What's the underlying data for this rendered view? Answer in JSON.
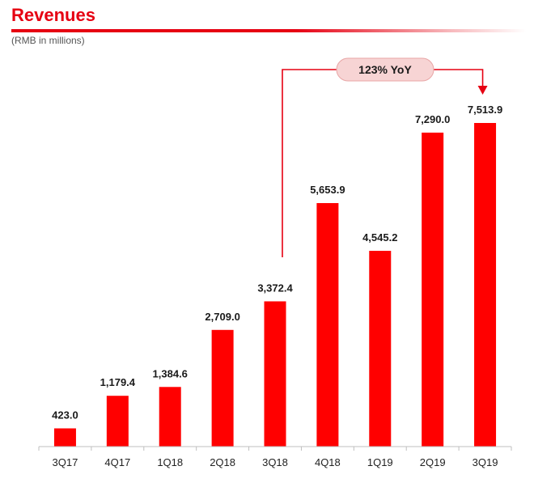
{
  "header": {
    "title": "Revenues",
    "subtitle": "(RMB in millions)"
  },
  "colors": {
    "accent": "#e60012",
    "bar": "#ff0000",
    "callout_fill": "#f7d4d4"
  },
  "callout": {
    "text": "123% YoY",
    "from_category": "3Q18",
    "to_category": "3Q19"
  },
  "chart_data": {
    "type": "bar",
    "title": "Revenues",
    "subtitle": "(RMB in millions)",
    "categories": [
      "3Q17",
      "4Q17",
      "1Q18",
      "2Q18",
      "3Q18",
      "4Q18",
      "1Q19",
      "2Q19",
      "3Q19"
    ],
    "values": [
      423.0,
      1179.4,
      1384.6,
      2709.0,
      3372.4,
      5653.9,
      4545.2,
      7290.0,
      7513.9
    ],
    "value_labels": [
      "423.0",
      "1,179.4",
      "1,384.6",
      "2,709.0",
      "3,372.4",
      "5,653.9",
      "4,545.2",
      "7,290.0",
      "7,513.9"
    ],
    "xlabel": "",
    "ylabel": "",
    "ylim": [
      0,
      7600
    ],
    "grid": false,
    "legend": "none"
  }
}
